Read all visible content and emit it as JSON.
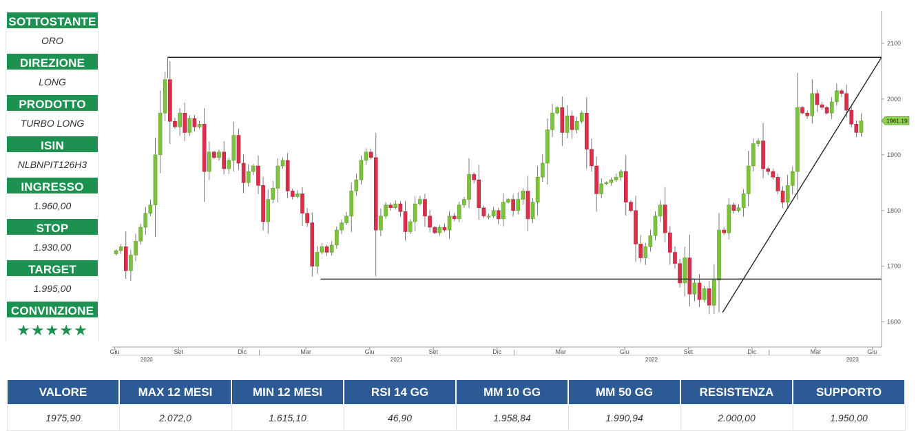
{
  "left_panel": [
    {
      "label": "SOTTOSTANTE",
      "value": "ORO"
    },
    {
      "label": "DIREZIONE",
      "value": "LONG"
    },
    {
      "label": "PRODOTTO",
      "value": "TURBO LONG"
    },
    {
      "label": "ISIN",
      "value": "NLBNPIT126H3"
    },
    {
      "label": "INGRESSO",
      "value": "1.960,00"
    },
    {
      "label": "STOP",
      "value": "1.930,00"
    },
    {
      "label": "TARGET",
      "value": "1.995,00"
    },
    {
      "label": "CONVINZIONE",
      "value": "★★★★★"
    }
  ],
  "colors": {
    "green_header": "#1c9150",
    "blue_header": "#2b5a95",
    "candle_up": "#7cc23a",
    "candle_down": "#d8304a"
  },
  "chart_data": {
    "type": "candlestick",
    "y_ticks": [
      "2100",
      "2000",
      "1900",
      "1800",
      "1700",
      "1600"
    ],
    "ylim": [
      1555,
      2160
    ],
    "x_ticks": [
      "Giu",
      "Set",
      "Dic",
      "Mar",
      "Giu",
      "Set",
      "Dic",
      "Mar",
      "Giu",
      "Set",
      "Dic",
      "Mar",
      "Giu"
    ],
    "years": [
      "2020",
      "2021",
      "2022",
      "2023"
    ],
    "last_price_label": "1961.19",
    "weekly_closes": [
      1728,
      1735,
      1692,
      1720,
      1745,
      1770,
      1795,
      1810,
      1900,
      1975,
      2035,
      1960,
      1950,
      1975,
      1940,
      1965,
      1950,
      1955,
      1870,
      1905,
      1895,
      1905,
      1875,
      1890,
      1935,
      1885,
      1850,
      1870,
      1880,
      1845,
      1780,
      1820,
      1840,
      1880,
      1890,
      1835,
      1825,
      1830,
      1795,
      1778,
      1700,
      1725,
      1735,
      1725,
      1738,
      1765,
      1778,
      1790,
      1835,
      1855,
      1890,
      1905,
      1895,
      1765,
      1790,
      1810,
      1805,
      1812,
      1798,
      1762,
      1780,
      1812,
      1820,
      1790,
      1770,
      1760,
      1770,
      1765,
      1790,
      1785,
      1810,
      1820,
      1865,
      1855,
      1805,
      1790,
      1790,
      1800,
      1785,
      1815,
      1820,
      1800,
      1820,
      1835,
      1785,
      1815,
      1860,
      1885,
      1945,
      1975,
      1985,
      1940,
      1970,
      1945,
      1960,
      1975,
      1910,
      1880,
      1830,
      1848,
      1850,
      1855,
      1860,
      1870,
      1815,
      1800,
      1740,
      1715,
      1735,
      1755,
      1790,
      1810,
      1760,
      1725,
      1705,
      1670,
      1715,
      1650,
      1670,
      1640,
      1660,
      1630,
      1675,
      1765,
      1760,
      1810,
      1800,
      1805,
      1830,
      1880,
      1920,
      1925,
      1875,
      1870,
      1860,
      1835,
      1815,
      1845,
      1870,
      1985,
      1975,
      1970,
      2010,
      1990,
      1985,
      1975,
      1995,
      2015,
      2010,
      1980,
      1955,
      1940,
      1961
    ],
    "resistance_level": 2075,
    "support_level": 1677,
    "trendline_from": 1617,
    "trendline_to": 2075
  },
  "bottom_table": {
    "headers": [
      "VALORE",
      "MAX 12 MESI",
      "MIN 12 MESI",
      "RSI 14 GG",
      "MM 10 GG",
      "MM 50 GG",
      "RESISTENZA",
      "SUPPORTO"
    ],
    "values": [
      "1975,90",
      "2.072,0",
      "1.615,10",
      "46,90",
      "1.958,84",
      "1.990,94",
      "2.000,00",
      "1.950,00"
    ]
  }
}
